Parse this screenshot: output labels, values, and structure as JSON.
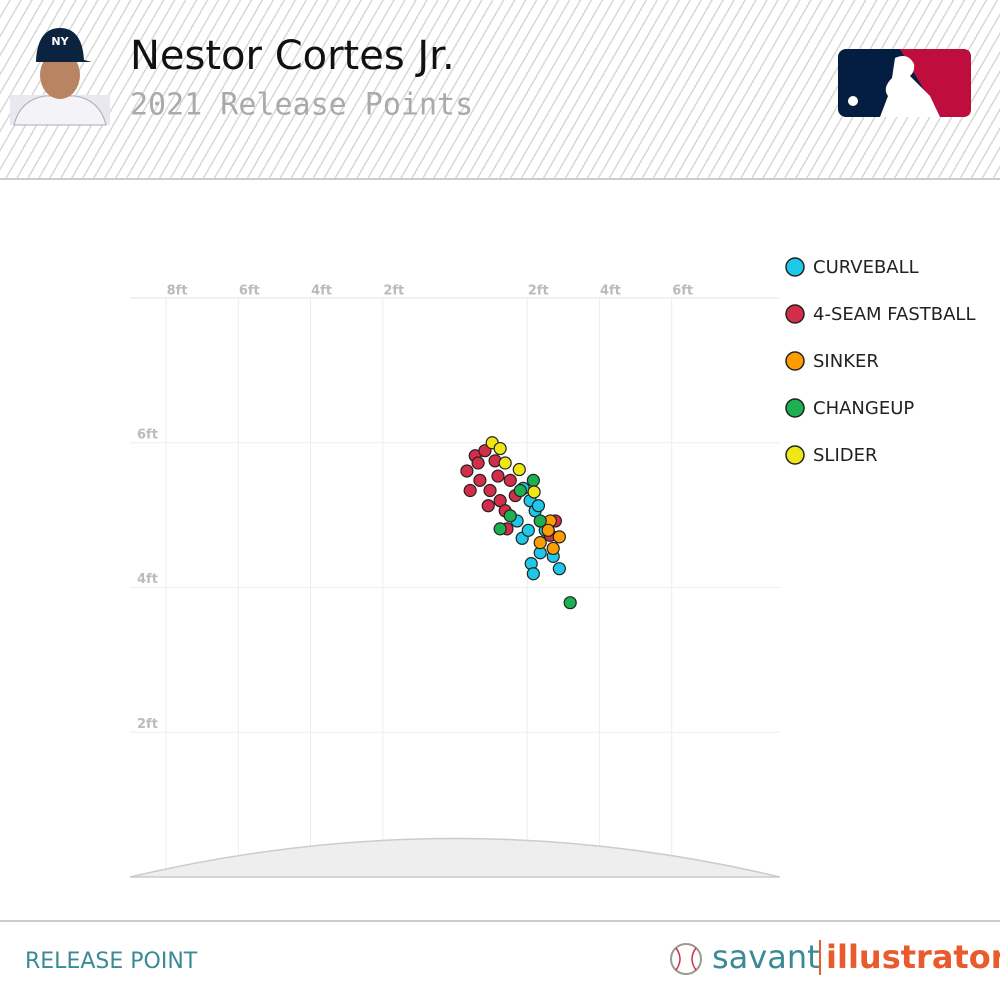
{
  "chart_data": {
    "type": "scatter",
    "title": "Nestor Cortes Jr.",
    "subtitle": "2021 Release Points",
    "xlim": [
      -9,
      9
    ],
    "ylim": [
      0,
      8
    ],
    "xticks": [
      {
        "value": -8,
        "label": "8ft"
      },
      {
        "value": -6,
        "label": "6ft"
      },
      {
        "value": -4,
        "label": "4ft"
      },
      {
        "value": -2,
        "label": "2ft"
      },
      {
        "value": 2,
        "label": "2ft"
      },
      {
        "value": 4,
        "label": "4ft"
      },
      {
        "value": 6,
        "label": "6ft"
      }
    ],
    "yticks": [
      {
        "value": 2,
        "label": "2ft"
      },
      {
        "value": 4,
        "label": "4ft"
      },
      {
        "value": 6,
        "label": "6ft"
      }
    ],
    "grid": true,
    "legend": "right",
    "series": [
      {
        "name": "CURVEBALL",
        "color": "#1ec8e8",
        "x": [
          1.89,
          2.08,
          1.72,
          2.22,
          1.86,
          2.36,
          2.11,
          2.17,
          2.89,
          2.72,
          2.5,
          2.31,
          2.03
        ],
        "values": [
          5.37,
          5.2,
          4.92,
          5.06,
          4.68,
          4.48,
          4.33,
          4.19,
          4.26,
          4.43,
          4.79,
          5.13,
          4.79
        ]
      },
      {
        "name": "4-SEAM FASTBALL",
        "color": "#d22d49",
        "x": [
          0.33,
          0.56,
          0.83,
          1.11,
          0.69,
          0.97,
          1.25,
          1.53,
          1.39,
          0.42,
          0.92,
          1.67,
          1.19,
          0.64,
          2.78,
          2.64,
          1.44
        ],
        "values": [
          5.61,
          5.82,
          5.89,
          5.75,
          5.48,
          5.34,
          5.2,
          5.48,
          5.06,
          5.34,
          5.13,
          5.27,
          5.54,
          5.72,
          4.92,
          4.72,
          4.81
        ]
      },
      {
        "name": "SINKER",
        "color": "#fe9d00",
        "x": [
          2.64,
          2.89,
          2.72,
          2.36,
          2.58
        ],
        "values": [
          4.92,
          4.7,
          4.54,
          4.62,
          4.79
        ]
      },
      {
        "name": "CHANGEUP",
        "color": "#1db053",
        "x": [
          3.19,
          2.17,
          1.25,
          1.81,
          1.53,
          2.36
        ],
        "values": [
          3.79,
          5.48,
          4.81,
          5.34,
          4.99,
          4.92
        ]
      },
      {
        "name": "SLIDER",
        "color": "#eee716",
        "x": [
          1.03,
          1.78,
          1.39,
          2.19,
          1.25
        ],
        "values": [
          6.0,
          5.63,
          5.72,
          5.32,
          5.92
        ]
      }
    ]
  },
  "footer": {
    "label": "RELEASE POINT",
    "brand_left": "savant",
    "brand_right": "illustrator"
  }
}
